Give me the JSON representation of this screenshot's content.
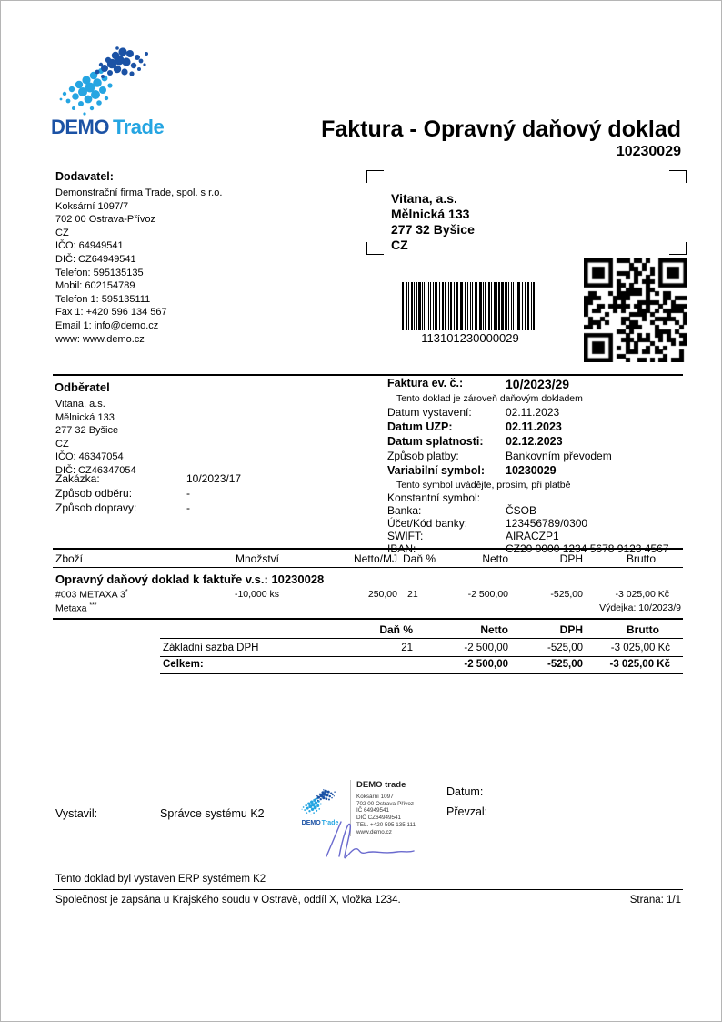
{
  "brand": {
    "demo": "DEMO",
    "trade": "Trade"
  },
  "header": {
    "title": "Faktura - Opravný daňový doklad",
    "number": "10230029"
  },
  "supplier": {
    "heading": "Dodavatel:",
    "lines": [
      "Demonstrační firma Trade, spol. s r.o.",
      "Koksární 1097/7",
      "702 00 Ostrava-Přívoz",
      "CZ",
      "IČO: 64949541",
      "DIČ: CZ64949541",
      "Telefon: 595135135",
      "Mobil: 602154789",
      "Telefon 1: 595135111",
      "Fax 1: +420 596 134 567",
      "Email 1: info@demo.cz",
      "www: www.demo.cz"
    ]
  },
  "recipient_window": {
    "lines": [
      "Vitana, a.s.",
      "Mělnická 133",
      "277 32 Byšice",
      "CZ"
    ]
  },
  "barcode": {
    "value": "113101230000029"
  },
  "customer": {
    "heading": "Odběratel",
    "lines": [
      "Vitana, a.s.",
      "Mělnická 133",
      "277 32 Byšice",
      "CZ",
      "IČO: 46347054",
      "DIČ: CZ46347054"
    ],
    "zakazka_label": "Zakázka:",
    "zakazka_value": "10/2023/17",
    "odber_label": "Způsob odběru:",
    "odber_value": "-",
    "doprava_label": "Způsob dopravy:",
    "doprava_value": "-"
  },
  "details": {
    "evc_label": "Faktura ev. č.:",
    "evc_value": "10/2023/29",
    "note1": "Tento doklad je zároveň daňovým dokladem",
    "issue_label": "Datum vystavení:",
    "issue_value": "02.11.2023",
    "uzp_label": "Datum UZP:",
    "uzp_value": "02.11.2023",
    "due_label": "Datum splatnosti:",
    "due_value": "02.12.2023",
    "pay_label": "Způsob platby:",
    "pay_value": "Bankovním převodem",
    "vs_label": "Variabilní symbol:",
    "vs_value": "10230029",
    "note2": "Tento symbol uvádějte, prosím, při platbě",
    "ks_label": "Konstantní symbol:",
    "ks_value": "",
    "bank_label": "Banka:",
    "bank_value": "ČSOB",
    "account_label": "Účet/Kód banky:",
    "account_value": "123456789/0300",
    "swift_label": "SWIFT:",
    "swift_value": "AIRACZP1",
    "iban_label": "IBAN:",
    "iban_value": "CZ20 0000 1234 5678 9123 4567"
  },
  "items": {
    "headers": [
      "Zboží",
      "Množství",
      "Netto/MJ",
      "Daň %",
      "Netto",
      "DPH",
      "Brutto"
    ],
    "section_title": "Opravný daňový doklad k faktuře v.s.: 10230028",
    "row": {
      "name": "#003 METAXA 3",
      "mark": "*",
      "qty": "-10,000 ks",
      "unit_price": "250,00",
      "tax": "21",
      "netto": "-2 500,00",
      "dph": "-525,00",
      "brutto": "-3 025,00 Kč",
      "subname": "Metaxa",
      "submark": "***",
      "delivery_note": "Výdejka: 10/2023/9"
    }
  },
  "summary": {
    "tax_header": "Daň %",
    "netto_header": "Netto",
    "dph_header": "DPH",
    "brutto_header": "Brutto",
    "base_label": "Základní sazba DPH",
    "base_tax": "21",
    "base_netto": "-2 500,00",
    "base_dph": "-525,00",
    "base_brutto": "-3 025,00 Kč",
    "total_label": "Celkem:",
    "total_netto": "-2 500,00",
    "total_dph": "-525,00",
    "total_brutto": "-3 025,00 Kč"
  },
  "signing": {
    "vystavil_label": "Vystavil:",
    "vystavil_value": "Správce systému K2",
    "datum_label": "Datum:",
    "prevzal_label": "Převzal:"
  },
  "stamp": {
    "brand": "DEMO trade",
    "logo_text_demo": "DEMO",
    "logo_text_trade": "Trade",
    "lines": [
      "Koksární 1097",
      "702 00 Ostrava-Přívoz",
      "IČ 64949541",
      "DIČ CZ64949541",
      "TEL. +420 595 135 111",
      "www.demo.cz"
    ]
  },
  "footer": {
    "erp_note": "Tento doklad byl vystaven ERP systémem K2",
    "registry_note": "Společnost je zapsána u Krajského soudu v Ostravě, oddíl X, vložka 1234.",
    "page": "Strana: 1/1"
  },
  "colors": {
    "logo_dark": "#1b52a5",
    "logo_light": "#25a5e2",
    "signature": "#6a6ace"
  }
}
